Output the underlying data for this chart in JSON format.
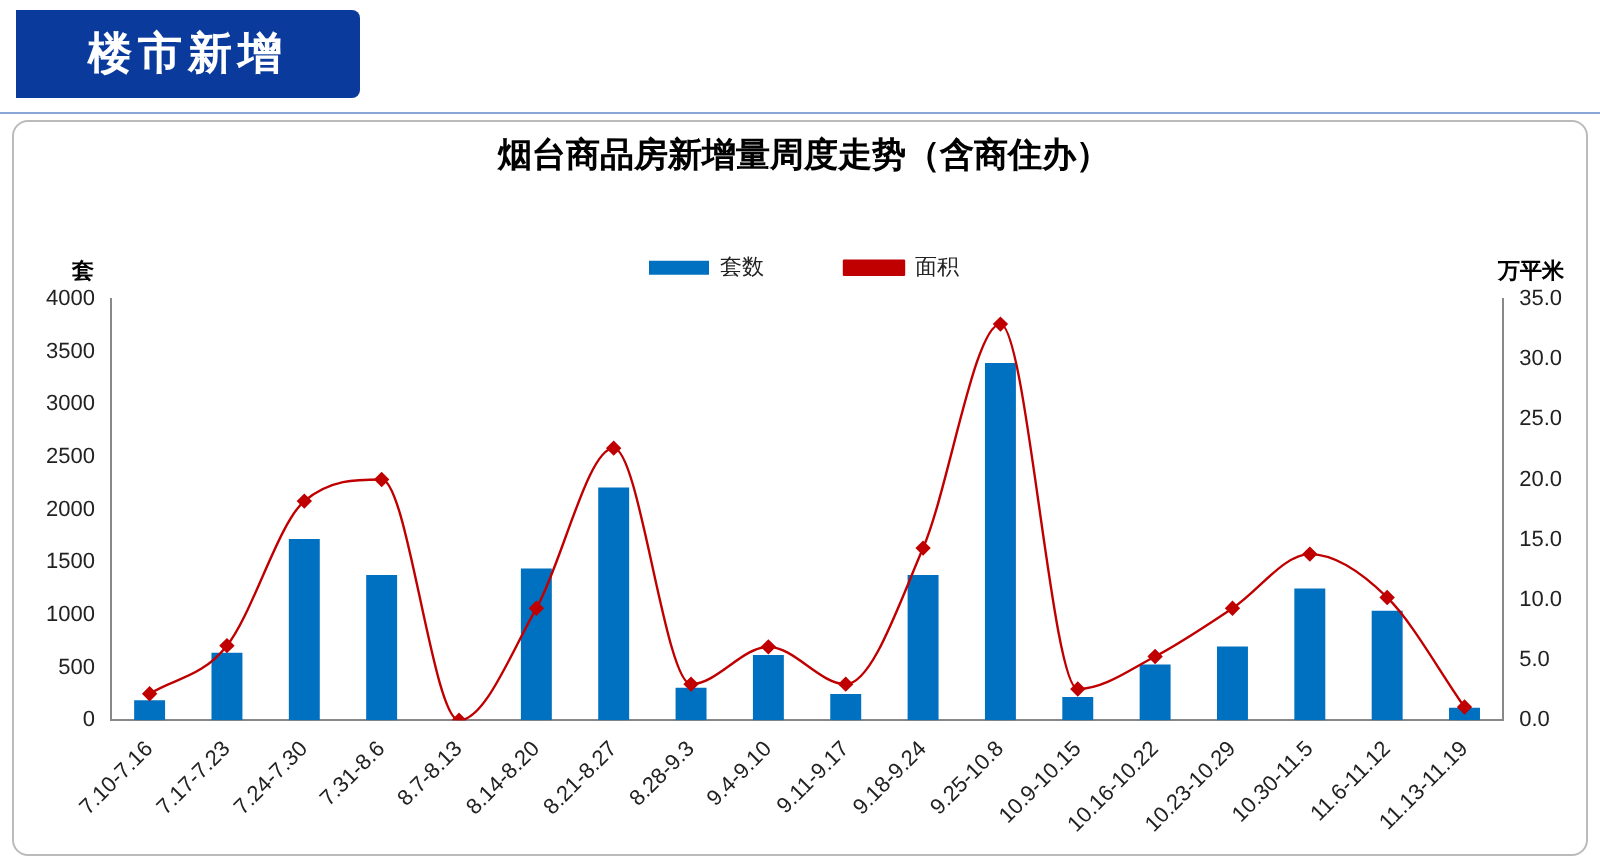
{
  "chart_data": {
    "type": "bar",
    "title": "烟台商品房新增量周度走势（含商住办）",
    "ylabel": "套",
    "y2label": "万平米",
    "annotations": [
      "楼市新增"
    ],
    "categories": [
      "7.10-7.16",
      "7.17-7.23",
      "7.24-7.30",
      "7.31-8.6",
      "8.7-8.13",
      "8.14-8.20",
      "8.21-8.27",
      "8.28-9.3",
      "9.4-9.10",
      "9.11-9.17",
      "9.18-9.24",
      "9.25-10.8",
      "10.9-10.15",
      "10.16-10.22",
      "10.23-10.29",
      "10.30-11.5",
      "11.6-11.12",
      "11.13-11.19"
    ],
    "series": [
      {
        "name": "套数",
        "color": "#0070c0",
        "values": [
          190,
          640,
          1720,
          1380,
          0,
          1440,
          2210,
          310,
          620,
          250,
          1380,
          3390,
          220,
          530,
          700,
          1250,
          1040,
          120
        ]
      },
      {
        "name": "面积",
        "type": "line",
        "axis": "y2",
        "color": "#c00000",
        "marker": "diamond",
        "values": [
          2.2,
          6.2,
          18.2,
          20.0,
          0,
          9.3,
          22.6,
          3.0,
          6.1,
          3.0,
          14.3,
          32.9,
          2.6,
          5.3,
          9.3,
          13.8,
          10.2,
          1.1
        ]
      }
    ],
    "ylim": [
      0,
      4000
    ],
    "yticks": [
      0,
      500,
      1000,
      1500,
      2000,
      2500,
      3000,
      3500,
      4000
    ],
    "y2lim": [
      0,
      35
    ],
    "y2ticks": [
      {
        "value": 0,
        "label": "0.0"
      },
      {
        "value": 5,
        "label": "5.0"
      },
      {
        "value": 10,
        "label": "10.0"
      },
      {
        "value": 15,
        "label": "15.0"
      },
      {
        "value": 20,
        "label": "20.0"
      },
      {
        "value": 25,
        "label": "25.0"
      },
      {
        "value": 30,
        "label": "30.0"
      },
      {
        "value": 35,
        "label": "35.0"
      }
    ],
    "grid": false,
    "legend": "top"
  }
}
